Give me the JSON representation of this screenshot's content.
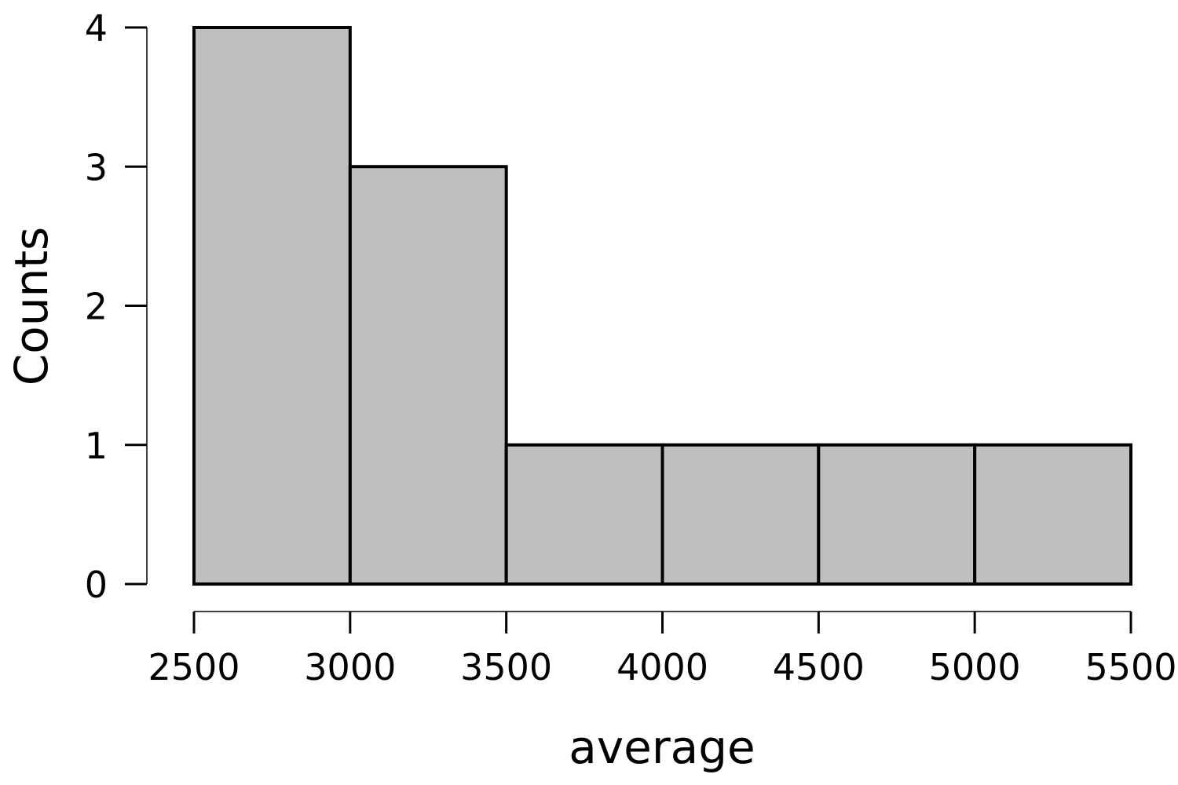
{
  "chart_data": {
    "type": "bar",
    "title": "",
    "xlabel": "average",
    "ylabel": "Counts",
    "bins": [
      {
        "start": 2500,
        "end": 3000,
        "count": 4
      },
      {
        "start": 3000,
        "end": 3500,
        "count": 3
      },
      {
        "start": 3500,
        "end": 4000,
        "count": 1
      },
      {
        "start": 4000,
        "end": 4500,
        "count": 1
      },
      {
        "start": 4500,
        "end": 5000,
        "count": 1
      },
      {
        "start": 5000,
        "end": 5500,
        "count": 1
      }
    ],
    "xticks": [
      "2500",
      "3000",
      "3500",
      "4000",
      "4500",
      "5000",
      "5500"
    ],
    "yticks": [
      "0",
      "1",
      "2",
      "3",
      "4"
    ],
    "xlim": [
      2500,
      5500
    ],
    "ylim": [
      0,
      4
    ],
    "grid": false,
    "bar_color": "#bfbfbf",
    "edge_color": "#000000"
  }
}
